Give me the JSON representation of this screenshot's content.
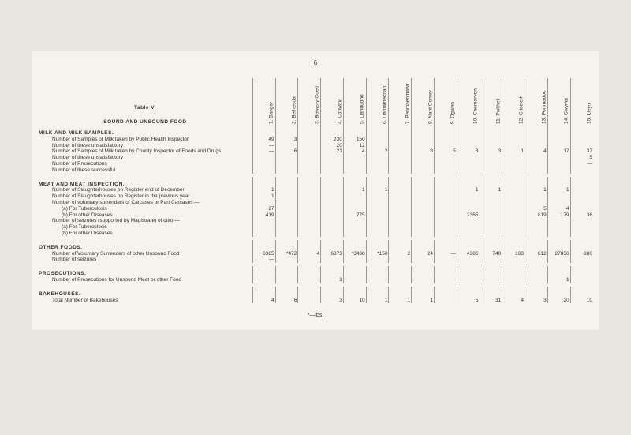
{
  "page_number": "6",
  "table_title": "Table V.",
  "subtitle": "SOUND AND UNSOUND FOOD",
  "columns": [
    "1. Bangor",
    "2. Bethesda",
    "3. Betws-y-Coed",
    "4. Conway",
    "5. Llandudno",
    "6. Llanfairfechan",
    "7. Penmaenmawr",
    "8. Nant Conwy",
    "9. Ogwen",
    "10. Caernarvon",
    "11. Pwllheli",
    "12. Criccieth",
    "13. Portmadoc",
    "14. Gwyrfai",
    "15. Lleyn"
  ],
  "sections": [
    {
      "title": "MILK AND MILK SAMPLES.",
      "rows": [
        {
          "label": "Number of Samples of Milk taken by Public Health Inspector",
          "indent": 1,
          "v": [
            "49",
            "3",
            "",
            "230",
            "150",
            "",
            "",
            "",
            "",
            "",
            "",
            "",
            "",
            "",
            ""
          ]
        },
        {
          "label": "Number of these unsatisfactory",
          "indent": 1,
          "v": [
            "—",
            "",
            "",
            "20",
            "12",
            "",
            "",
            "",
            "",
            "",
            "",
            "",
            "",
            "",
            ""
          ]
        },
        {
          "label": "Number of Samples of Milk taken by County Inspector of Foods and Drugs",
          "indent": 1,
          "v": [
            "—",
            "6",
            "",
            "21",
            "4",
            "2",
            "",
            "8",
            "5",
            "3",
            "3",
            "1",
            "4",
            "17",
            "37"
          ]
        },
        {
          "label": "Number of these unsatisfactory",
          "indent": 1,
          "v": [
            "",
            "",
            "",
            "",
            "",
            "",
            "",
            "",
            "",
            "",
            "",
            "",
            "",
            "",
            "5"
          ]
        },
        {
          "label": "Number of Prosecutions",
          "indent": 1,
          "v": [
            "",
            "",
            "",
            "",
            "",
            "",
            "",
            "",
            "",
            "",
            "",
            "",
            "",
            "",
            "—"
          ]
        },
        {
          "label": "Number of these successful",
          "indent": 1,
          "v": [
            "",
            "",
            "",
            "",
            "",
            "",
            "",
            "",
            "",
            "",
            "",
            "",
            "",
            "",
            ""
          ]
        }
      ]
    },
    {
      "title": "MEAT AND MEAT INSPECTION.",
      "rows": [
        {
          "label": "Number of Slaughterhouses on Register end of December",
          "indent": 1,
          "v": [
            "1",
            "",
            "",
            "",
            "1",
            "1",
            "",
            "",
            "",
            "1",
            "1",
            "",
            "1",
            "1",
            ""
          ]
        },
        {
          "label": "Number of Slaughterhouses on Register in the previous year",
          "indent": 1,
          "v": [
            "1",
            "",
            "",
            "",
            "",
            "",
            "",
            "",
            "",
            "",
            "",
            "",
            "",
            "",
            ""
          ]
        },
        {
          "label": "Number of voluntary surrenders of Carcases or Part Carcases:—",
          "indent": 1,
          "v": [
            "",
            "",
            "",
            "",
            "",
            "",
            "",
            "",
            "",
            "",
            "",
            "",
            "",
            "",
            ""
          ]
        },
        {
          "label": "(a) For Tuberculosis",
          "indent": 2,
          "v": [
            "27",
            "",
            "",
            "",
            "",
            "",
            "",
            "",
            "",
            "",
            "",
            "",
            "5",
            "4",
            ""
          ]
        },
        {
          "label": "(b) For other Diseases",
          "indent": 2,
          "v": [
            "419",
            "",
            "",
            "",
            "775",
            "",
            "",
            "",
            "",
            "2365",
            "",
            "",
            "819",
            "179",
            "36"
          ]
        },
        {
          "label": "Number of seizures (supported by Magistrate) of ditto:—",
          "indent": 1,
          "v": [
            "",
            "",
            "",
            "",
            "",
            "",
            "",
            "",
            "",
            "",
            "",
            "",
            "",
            "",
            ""
          ]
        },
        {
          "label": "(a) For Tuberculosis",
          "indent": 2,
          "v": [
            "",
            "",
            "",
            "",
            "",
            "",
            "",
            "",
            "",
            "",
            "",
            "",
            "",
            "",
            ""
          ]
        },
        {
          "label": "(b) For other Diseases",
          "indent": 2,
          "v": [
            "",
            "",
            "",
            "",
            "",
            "",
            "",
            "",
            "",
            "",
            "",
            "",
            "",
            "",
            ""
          ]
        }
      ]
    },
    {
      "title": "OTHER FOODS.",
      "rows": [
        {
          "label": "Number of Voluntary Surrenders of other Unsound Food",
          "indent": 1,
          "v": [
            "6385",
            "*472",
            "4",
            "6873",
            "*3438",
            "*150",
            "2",
            "24",
            "—",
            "4386",
            "740",
            "163",
            "812",
            "27836",
            "380"
          ]
        },
        {
          "label": "Number of seizures",
          "indent": 1,
          "v": [
            "—",
            "",
            "",
            "",
            "",
            "",
            "",
            "",
            "",
            "",
            "",
            "",
            "",
            "",
            ""
          ]
        }
      ]
    },
    {
      "title": "PROSECUTIONS.",
      "rows": [
        {
          "label": "Number of Prosecutions for Unsound Meat or other Food",
          "indent": 1,
          "v": [
            "",
            "",
            "",
            "1",
            "",
            "",
            "",
            "",
            "",
            "",
            "",
            "",
            "",
            "1",
            ""
          ]
        }
      ]
    },
    {
      "title": "BAKEHOUSES.",
      "rows": [
        {
          "label": "Total Number of Bakehouses",
          "indent": 1,
          "v": [
            "4",
            "6",
            "",
            "3",
            "10",
            "1",
            "1",
            "1",
            "",
            "5",
            "31",
            "4",
            "3",
            "20",
            "10"
          ]
        }
      ]
    }
  ],
  "footnote": "*—lbs."
}
